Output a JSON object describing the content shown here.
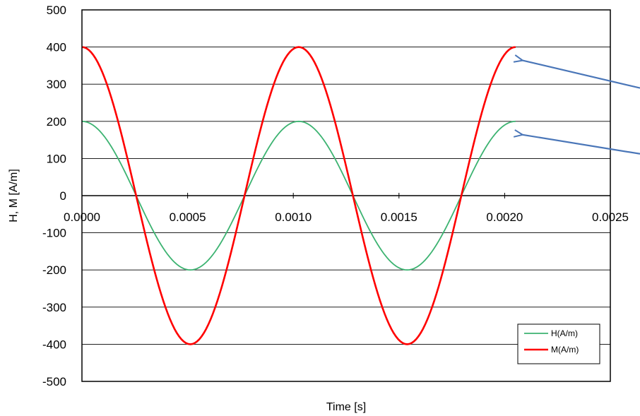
{
  "chart_data": {
    "type": "line",
    "xlabel": "Time [s]",
    "ylabel": "H, M  [A/m]",
    "xlim": [
      0,
      0.0025
    ],
    "ylim": [
      -500,
      500
    ],
    "x_ticks": [
      "0.0000",
      "0.0005",
      "0.0010",
      "0.0015",
      "0.0020",
      "0.0025"
    ],
    "y_ticks": [
      "500",
      "400",
      "300",
      "200",
      "100",
      "0",
      "-100",
      "-200",
      "-300",
      "-400",
      "-500"
    ],
    "grid": "horizontal",
    "legend_position": "bottom-right",
    "series": [
      {
        "name": "H(A/m)",
        "color": "#3cb371",
        "x": [
          0,
          0.0001282,
          0.0002565,
          0.0003847,
          0.0005129,
          0.0006411,
          0.0007694,
          0.0008976,
          0.0010258,
          0.001154,
          0.0012823,
          0.0014105,
          0.0015387,
          0.0016669,
          0.0017952,
          0.0019234,
          0.0020516
        ],
        "y": [
          200,
          141,
          0,
          -141,
          -200,
          -141,
          0,
          141,
          200,
          141,
          0,
          -141,
          -200,
          -141,
          0,
          141,
          200
        ]
      },
      {
        "name": "M(A/m)",
        "color": "#ff0000",
        "x": [
          0,
          0.0001282,
          0.0002565,
          0.0003847,
          0.0005129,
          0.0006411,
          0.0007694,
          0.0008976,
          0.0010258,
          0.001154,
          0.0012823,
          0.0014105,
          0.0015387,
          0.0016669,
          0.0017952,
          0.0019234,
          0.0020516
        ],
        "y": [
          400,
          283,
          0,
          -283,
          -400,
          -283,
          0,
          283,
          400,
          283,
          0,
          -283,
          -400,
          -283,
          0,
          283,
          400
        ]
      }
    ],
    "annotations": [
      {
        "type": "arrow",
        "color": "#4a76b8",
        "target_series": "M(A/m)"
      },
      {
        "type": "arrow",
        "color": "#4a76b8",
        "target_series": "H(A/m)"
      }
    ]
  }
}
